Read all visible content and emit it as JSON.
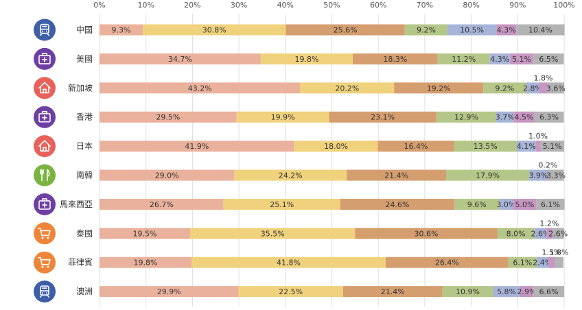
{
  "chart_data": {
    "type": "bar",
    "orientation": "horizontal",
    "stacked": true,
    "percent_stacked": true,
    "xlim": [
      0,
      100
    ],
    "x_ticks": [
      "0%",
      "10%",
      "20%",
      "30%",
      "40%",
      "50%",
      "60%",
      "70%",
      "80%",
      "90%",
      "100%"
    ],
    "grid": "vertical",
    "legend": "none",
    "categories": [
      "中國",
      "美國",
      "新加坡",
      "香港",
      "日本",
      "南韓",
      "馬來西亞",
      "泰國",
      "菲律賓",
      "澳洲"
    ],
    "category_icons": [
      "train-icon",
      "medical-bag-icon",
      "home-icon",
      "medical-bag-icon",
      "home-icon",
      "fork-knife-icon",
      "medical-bag-icon",
      "cart-icon",
      "cart-icon",
      "train-icon"
    ],
    "icon_colors": {
      "train-icon": "#3e5ea8",
      "medical-bag-icon": "#6e3fa3",
      "home-icon": "#e8625b",
      "fork-knife-icon": "#7bb340",
      "cart-icon": "#ef8538"
    },
    "segment_colors": [
      "#eab29d",
      "#f0d27d",
      "#d59e6f",
      "#b5c788",
      "#a7b4d8",
      "#c796c2",
      "#b3b3b3"
    ],
    "series": [
      {
        "values": [
          9.3,
          34.7,
          43.2,
          29.5,
          41.9,
          29.0,
          26.7,
          19.5,
          19.8,
          29.9
        ],
        "labels": [
          "9.3%",
          "34.7%",
          "43.2%",
          "29.5%",
          "41.9%",
          "29.0%",
          "26.7%",
          "19.5%",
          "19.8%",
          "29.9%"
        ]
      },
      {
        "values": [
          30.8,
          19.8,
          20.2,
          19.9,
          18.0,
          24.2,
          25.1,
          35.5,
          41.8,
          22.5
        ],
        "labels": [
          "30.8%",
          "19.8%",
          "20.2%",
          "19.9%",
          "18.0%",
          "24.2%",
          "25.1%",
          "35.5%",
          "41.8%",
          "22.5%"
        ]
      },
      {
        "values": [
          25.6,
          18.3,
          19.2,
          23.1,
          16.4,
          21.4,
          24.6,
          30.6,
          26.4,
          21.4
        ],
        "labels": [
          "25.6%",
          "18.3%",
          "19.2%",
          "23.1%",
          "16.4%",
          "21.4%",
          "24.6%",
          "30.6%",
          "26.4%",
          "21.4%"
        ]
      },
      {
        "values": [
          9.2,
          11.2,
          9.2,
          12.9,
          13.5,
          17.9,
          9.6,
          8.0,
          6.1,
          10.9
        ],
        "labels": [
          "9.2%",
          "11.2%",
          "9.2%",
          "12.9%",
          "13.5%",
          "17.9%",
          "9.6%",
          "8.0%",
          "6.1%",
          "10.9%"
        ]
      },
      {
        "values": [
          10.5,
          4.3,
          2.8,
          3.7,
          4.1,
          3.9,
          3.0,
          2.6,
          2.4,
          5.8
        ],
        "labels": [
          "10.5%",
          "4.3%",
          "2.8%",
          "3.7%",
          "4.1%",
          "3.9%",
          "3.0%",
          "2.6%",
          "2.4%",
          "5.8%"
        ]
      },
      {
        "values": [
          4.3,
          5.1,
          1.8,
          4.5,
          1.0,
          0.2,
          5.0,
          1.2,
          1.5,
          2.9
        ],
        "labels": [
          "4.3%",
          "5.1%",
          "1.8%",
          "4.5%",
          "1.0%",
          "0.2%",
          "5.0%",
          "1.2%",
          "1.5%",
          "2.9%"
        ]
      },
      {
        "values": [
          10.4,
          6.5,
          3.6,
          6.3,
          5.1,
          3.3,
          6.1,
          2.6,
          1.8,
          6.6
        ],
        "labels": [
          "10.4%",
          "6.5%",
          "3.6%",
          "6.3%",
          "5.1%",
          "3.3%",
          "6.1%",
          "2.6%",
          "1.8%",
          "6.6%"
        ]
      }
    ]
  }
}
